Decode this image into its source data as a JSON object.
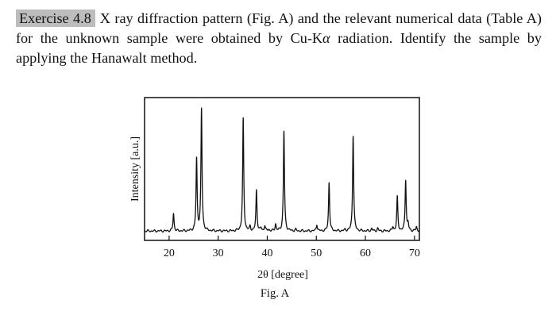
{
  "exercise": {
    "label": "Exercise 4.8",
    "text_before": "X ray diffraction pattern (Fig. A) and the relevant numerical data (Table A) for the unknown sample were obtained by Cu-K",
    "alpha": "α",
    "text_after": " radiation. Identify the sample by applying the Hanawalt method."
  },
  "figure": {
    "caption": "Fig. A"
  },
  "chart_data": {
    "type": "line",
    "xlabel": "2θ [degree]",
    "ylabel": "Intensity [a.u.]",
    "xlim": [
      15,
      71
    ],
    "ylim": [
      0,
      100
    ],
    "xticks": [
      20,
      30,
      40,
      50,
      60,
      70
    ],
    "grid": false,
    "baseline": 4,
    "peak_width": 0.13,
    "peaks": [
      {
        "x": 20.9,
        "y": 17
      },
      {
        "x": 25.6,
        "y": 57
      },
      {
        "x": 26.6,
        "y": 94
      },
      {
        "x": 35.1,
        "y": 87
      },
      {
        "x": 36.5,
        "y": 7
      },
      {
        "x": 37.8,
        "y": 34
      },
      {
        "x": 38.7,
        "y": 6
      },
      {
        "x": 39.5,
        "y": 8
      },
      {
        "x": 40.3,
        "y": 5
      },
      {
        "x": 41.7,
        "y": 9
      },
      {
        "x": 43.4,
        "y": 78
      },
      {
        "x": 45.8,
        "y": 5
      },
      {
        "x": 50.1,
        "y": 9
      },
      {
        "x": 52.6,
        "y": 40
      },
      {
        "x": 54.8,
        "y": 4
      },
      {
        "x": 55.9,
        "y": 5
      },
      {
        "x": 57.5,
        "y": 75
      },
      {
        "x": 59.7,
        "y": 4
      },
      {
        "x": 61.3,
        "y": 6
      },
      {
        "x": 62.5,
        "y": 6
      },
      {
        "x": 64.0,
        "y": 4
      },
      {
        "x": 65.6,
        "y": 7
      },
      {
        "x": 66.5,
        "y": 29
      },
      {
        "x": 68.2,
        "y": 42
      },
      {
        "x": 68.7,
        "y": 9
      },
      {
        "x": 70.4,
        "y": 7
      }
    ]
  }
}
